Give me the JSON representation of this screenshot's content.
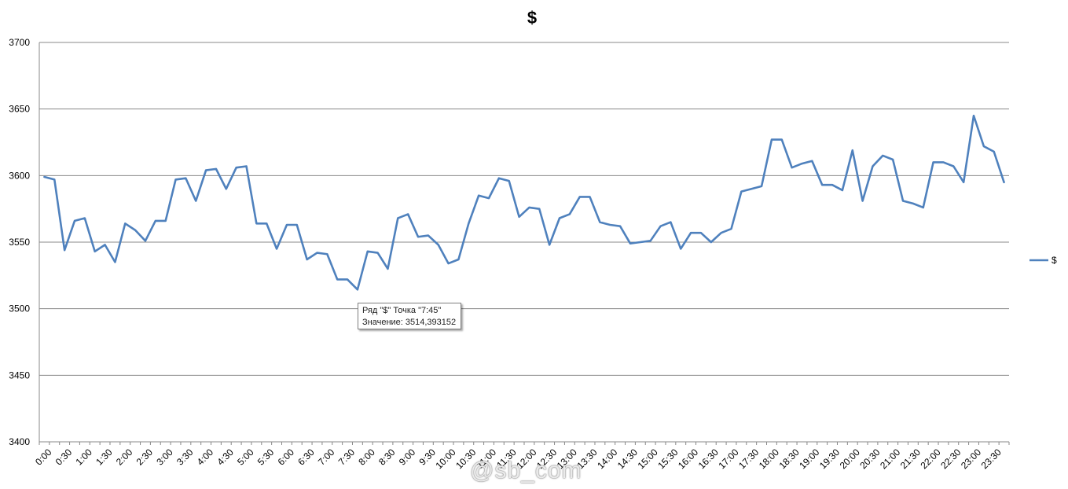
{
  "chart_data": {
    "type": "line",
    "title": "$",
    "xlabel": "",
    "ylabel": "",
    "ylim": [
      3400,
      3700
    ],
    "yticks": [
      3400,
      3450,
      3500,
      3550,
      3600,
      3650,
      3700
    ],
    "grid": true,
    "legend_position": "right",
    "line_color": "#4f81bd",
    "categories": [
      "0:00",
      "0:15",
      "0:30",
      "0:45",
      "1:00",
      "1:15",
      "1:30",
      "1:45",
      "2:00",
      "2:15",
      "2:30",
      "2:45",
      "3:00",
      "3:15",
      "3:30",
      "3:45",
      "4:00",
      "4:15",
      "4:30",
      "4:45",
      "5:00",
      "5:15",
      "5:30",
      "5:45",
      "6:00",
      "6:15",
      "6:30",
      "6:45",
      "7:00",
      "7:15",
      "7:30",
      "7:45",
      "8:00",
      "8:15",
      "8:30",
      "8:45",
      "9:00",
      "9:15",
      "9:30",
      "9:45",
      "10:00",
      "10:15",
      "10:30",
      "10:45",
      "11:00",
      "11:15",
      "11:30",
      "11:45",
      "12:00",
      "12:15",
      "12:30",
      "12:45",
      "13:00",
      "13:15",
      "13:30",
      "13:45",
      "14:00",
      "14:15",
      "14:30",
      "14:45",
      "15:00",
      "15:15",
      "15:30",
      "15:45",
      "16:00",
      "16:15",
      "16:30",
      "16:45",
      "17:00",
      "17:15",
      "17:30",
      "17:45",
      "18:00",
      "18:15",
      "18:30",
      "18:45",
      "19:00",
      "19:15",
      "19:30",
      "19:45",
      "20:00",
      "20:15",
      "20:30",
      "20:45",
      "21:00",
      "21:15",
      "21:30",
      "21:45",
      "22:00",
      "22:15",
      "22:30",
      "22:45",
      "23:00",
      "23:15",
      "23:30",
      "23:45"
    ],
    "x_tick_labels": [
      "0:00",
      "0:30",
      "1:00",
      "1:30",
      "2:00",
      "2:30",
      "3:00",
      "3:30",
      "4:00",
      "4:30",
      "5:00",
      "5:30",
      "6:00",
      "6:30",
      "7:00",
      "7:30",
      "8:00",
      "8:30",
      "9:00",
      "9:30",
      "10:00",
      "10:30",
      "11:00",
      "11:30",
      "12:00",
      "12:30",
      "13:00",
      "13:30",
      "14:00",
      "14:30",
      "15:00",
      "15:30",
      "16:00",
      "16:30",
      "17:00",
      "17:30",
      "18:00",
      "18:30",
      "19:00",
      "19:30",
      "20:00",
      "20:30",
      "21:00",
      "21:30",
      "22:00",
      "22:30",
      "23:00",
      "23:30"
    ],
    "series": [
      {
        "name": "$",
        "values": [
          3599,
          3597,
          3544,
          3566,
          3568,
          3543,
          3548,
          3535,
          3564,
          3559,
          3551,
          3566,
          3566,
          3597,
          3598,
          3581,
          3604,
          3605,
          3590,
          3606,
          3607,
          3564,
          3564,
          3545,
          3563,
          3563,
          3537,
          3542,
          3541,
          3522,
          3522,
          3514.393152,
          3543,
          3542,
          3530,
          3568,
          3571,
          3554,
          3555,
          3548,
          3534,
          3537,
          3564,
          3585,
          3583,
          3598,
          3596,
          3569,
          3576,
          3575,
          3548,
          3568,
          3571,
          3584,
          3584,
          3565,
          3563,
          3562,
          3549,
          3550,
          3551,
          3562,
          3565,
          3545,
          3557,
          3557,
          3550,
          3557,
          3560,
          3588,
          3590,
          3592,
          3627,
          3627,
          3606,
          3609,
          3611,
          3593,
          3593,
          3589,
          3619,
          3581,
          3607,
          3615,
          3612,
          3581,
          3579,
          3576,
          3610,
          3610,
          3607,
          3595,
          3645,
          3622,
          3618,
          3595
        ]
      }
    ],
    "tooltip": {
      "line1": "Ряд \"$\" Точка \"7:45\"",
      "line2": "Значение: 3514,393152"
    },
    "watermark": "@sb_com"
  }
}
